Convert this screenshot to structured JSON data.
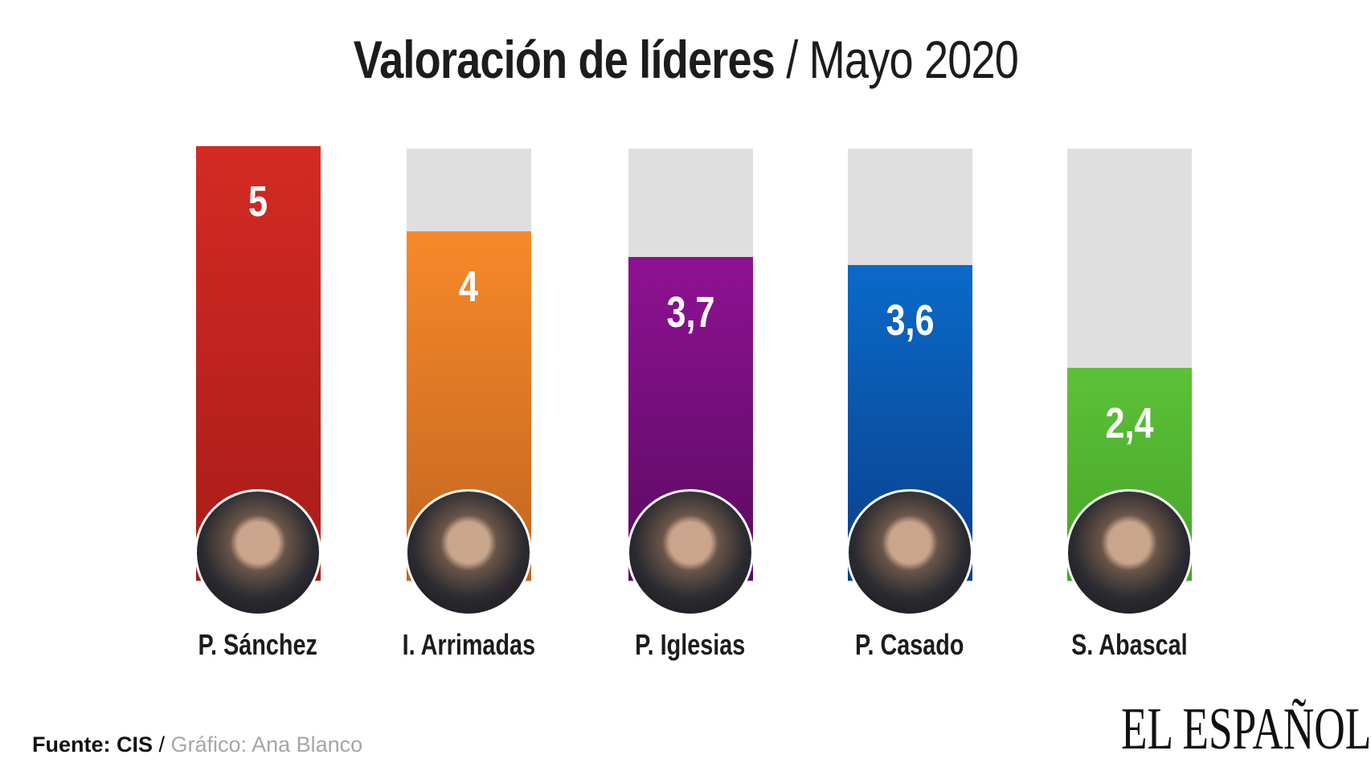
{
  "title": {
    "bold": "Valoración de líderes",
    "separator": " / ",
    "subtitle": "Mayo 2020"
  },
  "chart_data": {
    "type": "bar",
    "categories": [
      "P. Sánchez",
      "I. Arrimadas",
      "P. Iglesias",
      "P. Casado",
      "S. Abascal"
    ],
    "values": [
      5,
      4,
      3.7,
      3.6,
      2.4
    ],
    "value_labels": [
      "5",
      "4",
      "3,7",
      "3,6",
      "2,4"
    ],
    "ylim": [
      0,
      5
    ],
    "grid": false,
    "colors": [
      [
        "#d42a24",
        "#a81c18"
      ],
      [
        "#f7892a",
        "#c2651f"
      ],
      [
        "#8e1294",
        "#5a0a60"
      ],
      [
        "#0a6ac9",
        "#0a3f8a"
      ],
      [
        "#5cc138",
        "#46a52a"
      ]
    ],
    "track_color": "#dfdfdf"
  },
  "footer": {
    "source": "Fuente: CIS",
    "separator": " / ",
    "credit": "Gráfico: Ana Blanco"
  },
  "logo": "EL ESPAÑOL"
}
